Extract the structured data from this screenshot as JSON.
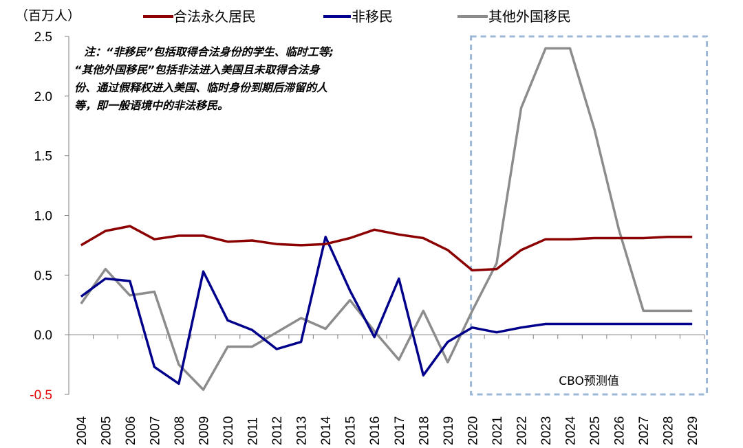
{
  "chart_data": {
    "type": "line",
    "unit_label": "（百万人）",
    "x": [
      "2004",
      "2005",
      "2006",
      "2007",
      "2008",
      "2009",
      "2010",
      "2011",
      "2012",
      "2013",
      "2014",
      "2015",
      "2016",
      "2017",
      "2018",
      "2019",
      "2020",
      "2021",
      "2022",
      "2023",
      "2024",
      "2025",
      "2026",
      "2027",
      "2028",
      "2029"
    ],
    "ylim": [
      -0.5,
      2.5
    ],
    "yticks": [
      "2.5",
      "2.0",
      "1.5",
      "1.0",
      "0.5",
      "0.0",
      "-0.5"
    ],
    "ytick_values": [
      2.5,
      2.0,
      1.5,
      1.0,
      0.5,
      0.0,
      -0.5
    ],
    "series": [
      {
        "name": "合法永久居民",
        "color": "#8b0000",
        "values": [
          0.75,
          0.87,
          0.91,
          0.8,
          0.83,
          0.83,
          0.78,
          0.79,
          0.76,
          0.75,
          0.76,
          0.81,
          0.88,
          0.84,
          0.81,
          0.71,
          0.54,
          0.55,
          0.71,
          0.8,
          0.8,
          0.81,
          0.81,
          0.81,
          0.82,
          0.82
        ]
      },
      {
        "name": "非移民",
        "color": "#00008b",
        "values": [
          0.32,
          0.47,
          0.45,
          -0.27,
          -0.41,
          0.53,
          0.12,
          0.04,
          -0.12,
          -0.06,
          0.82,
          0.37,
          -0.02,
          0.47,
          -0.34,
          -0.06,
          0.06,
          0.02,
          0.06,
          0.09,
          0.09,
          0.09,
          0.09,
          0.09,
          0.09,
          0.09
        ]
      },
      {
        "name": "其他外国移民",
        "color": "#8c8c8c",
        "values": [
          0.26,
          0.55,
          0.33,
          0.36,
          -0.25,
          -0.46,
          -0.1,
          -0.1,
          0.02,
          0.14,
          0.05,
          0.29,
          0.03,
          -0.21,
          0.2,
          -0.23,
          0.2,
          0.6,
          1.9,
          2.4,
          2.4,
          1.72,
          0.88,
          0.2,
          0.2,
          0.2
        ]
      }
    ],
    "note": [
      "注：“非移民”包括取得合法身份的学生、临时工等;",
      "“其他外国移民”包括非法进入美国且未取得合法身",
      "份、通过假释权进入美国、临时身份到期后滞留的人",
      "等，即一般语境中的非法移民。"
    ],
    "forecast": {
      "label": "CBO预测值",
      "from": "2020",
      "to": "2029"
    },
    "grid": false,
    "legend_position": "top"
  }
}
